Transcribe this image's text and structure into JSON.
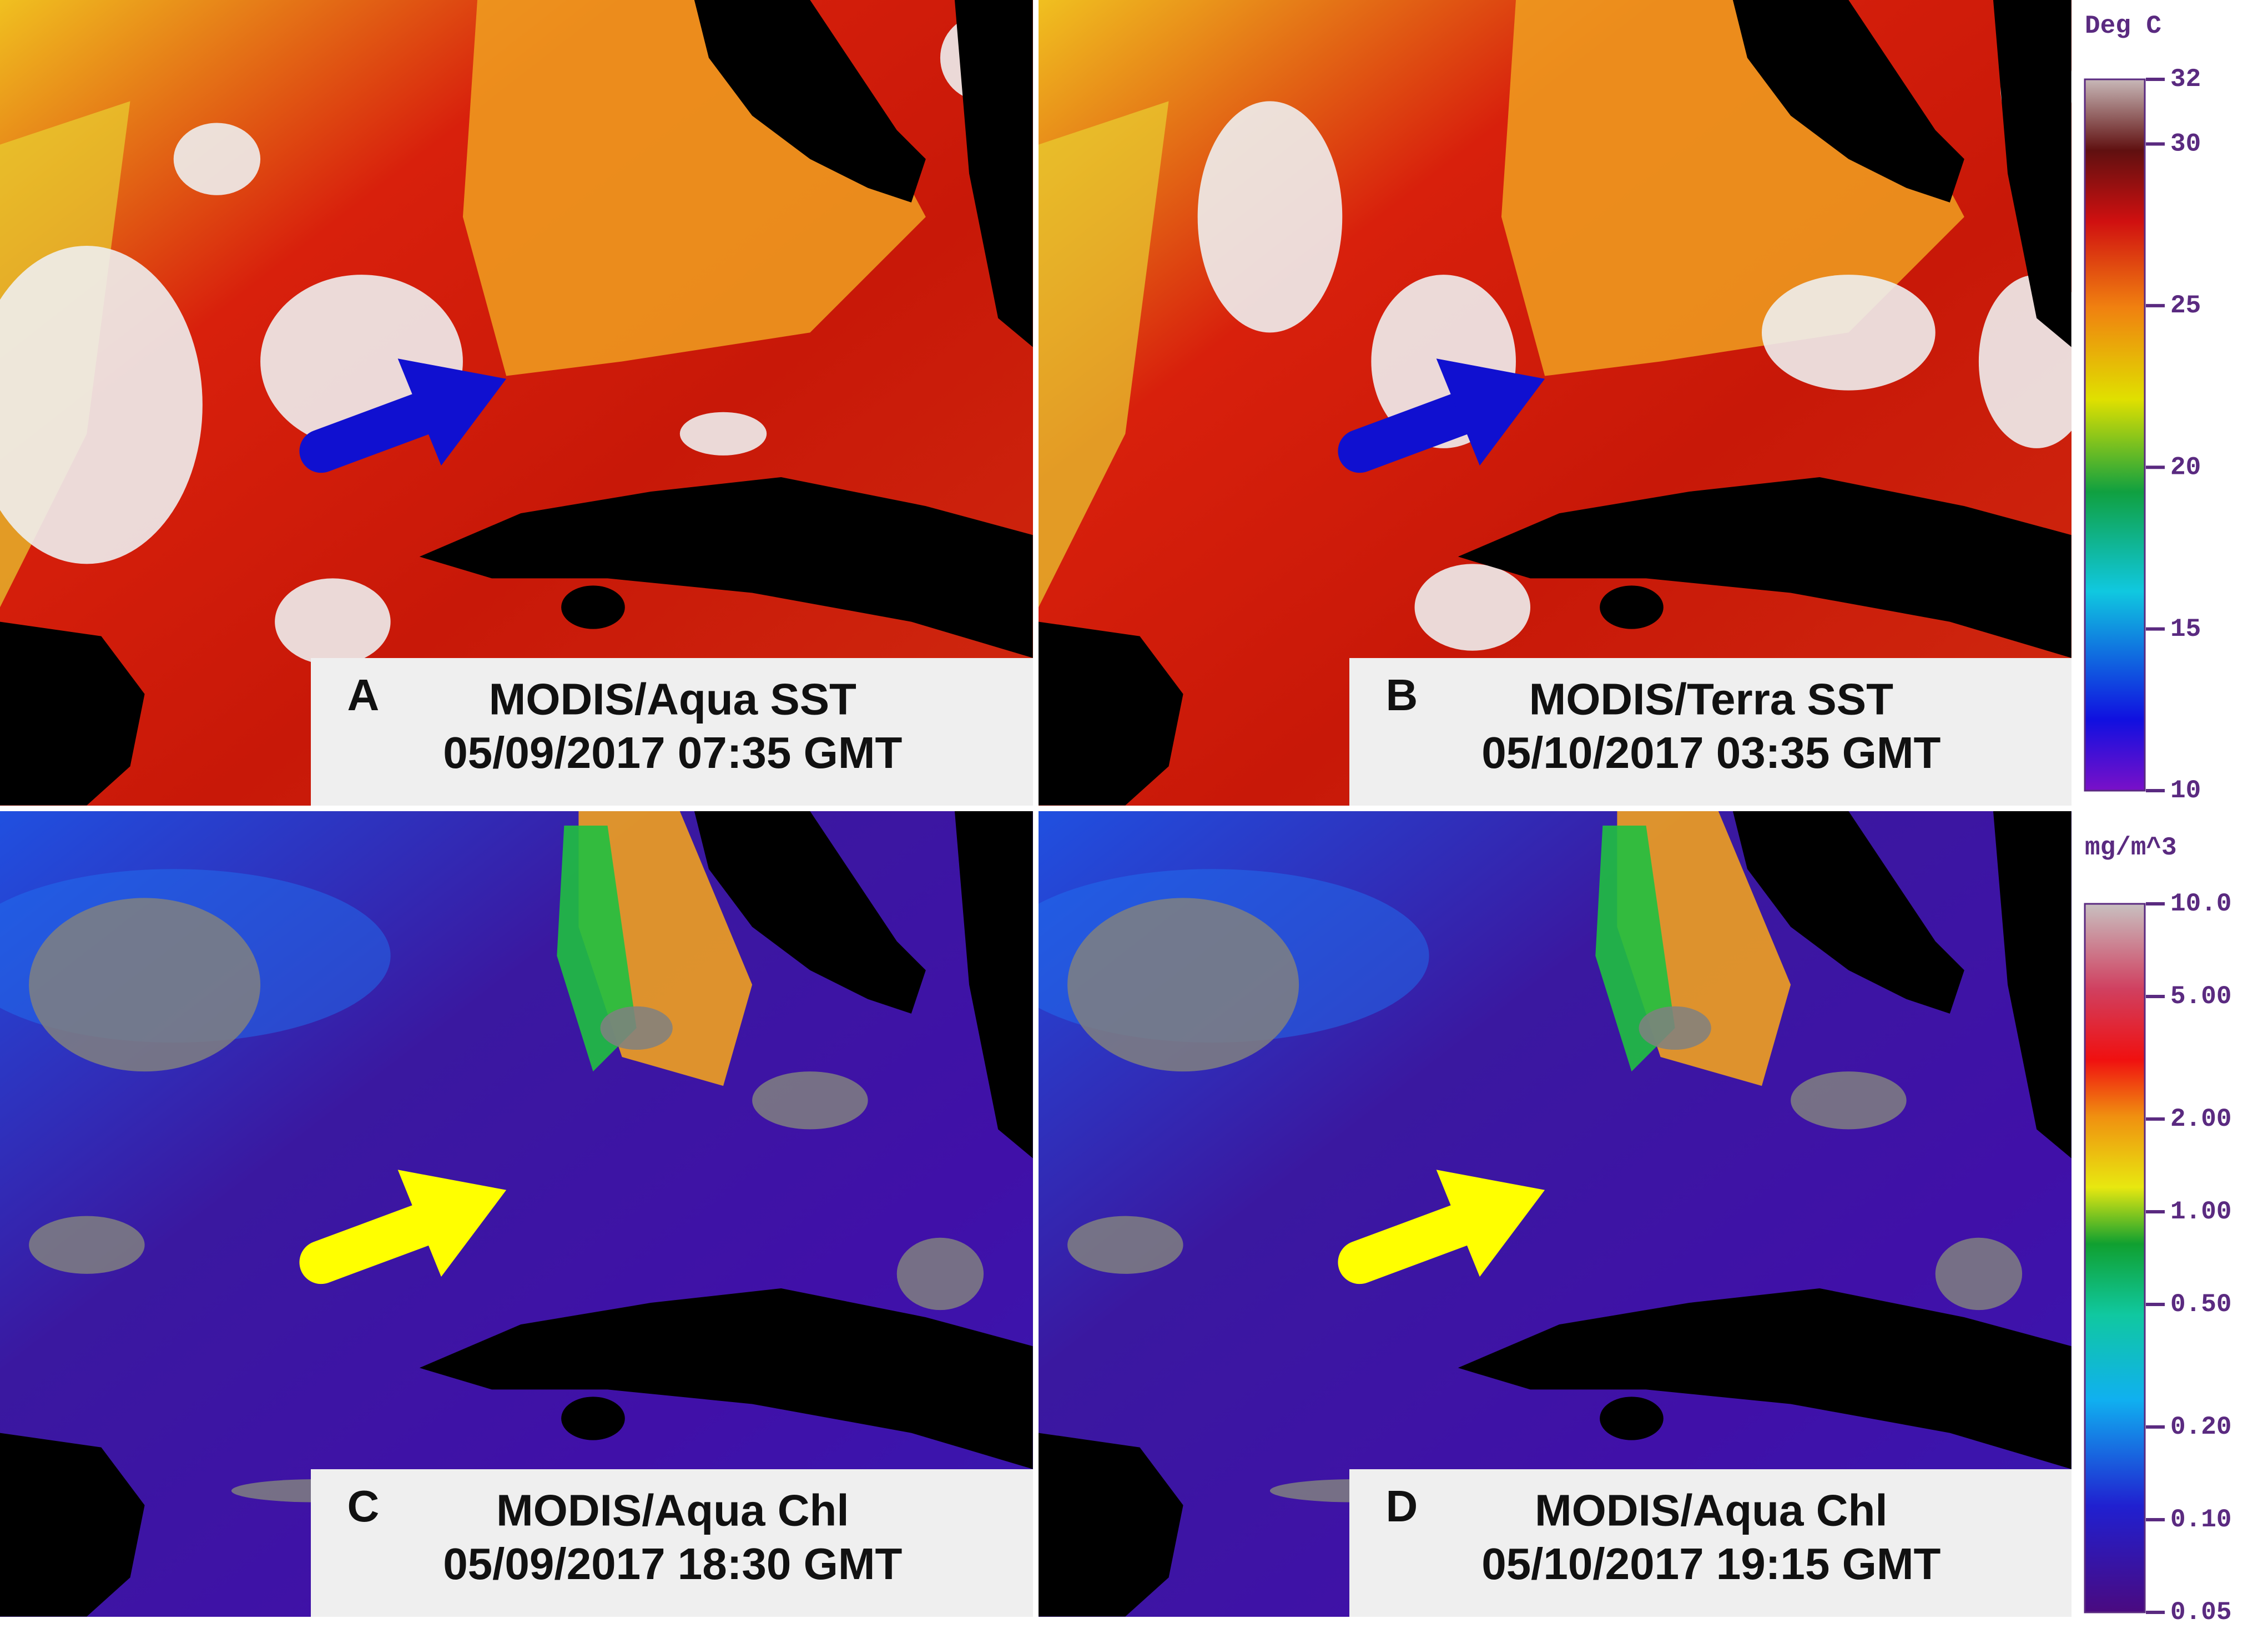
{
  "panels": [
    {
      "letter": "A",
      "title": "MODIS/Aqua SST",
      "time": "05/09/2017 07:35 GMT"
    },
    {
      "letter": "B",
      "title": "MODIS/Terra SST",
      "time": "05/10/2017 03:35 GMT"
    },
    {
      "letter": "C",
      "title": "MODIS/Aqua Chl",
      "time": "05/09/2017 18:30 GMT"
    },
    {
      "letter": "D",
      "title": "MODIS/Aqua Chl",
      "time": "05/10/2017 19:15 GMT"
    }
  ],
  "colorbars": [
    {
      "unit": "Deg C",
      "lim": [
        10,
        32
      ],
      "scale": "linear",
      "ticks": [
        32,
        30,
        25,
        20,
        15,
        10
      ]
    },
    {
      "unit": "mg/m^3",
      "lim": [
        0.05,
        10
      ],
      "scale": "log",
      "ticks": [
        {
          "value": 10,
          "label": "10.0"
        },
        {
          "value": 5,
          "label": "5.00"
        },
        {
          "value": 2,
          "label": "2.00"
        },
        {
          "value": 1,
          "label": "1.00"
        },
        {
          "value": 0.5,
          "label": "0.50"
        },
        {
          "value": 0.2,
          "label": "0.20"
        },
        {
          "value": 0.1,
          "label": "0.10"
        },
        {
          "value": 0.05,
          "label": "0.05"
        }
      ]
    }
  ]
}
